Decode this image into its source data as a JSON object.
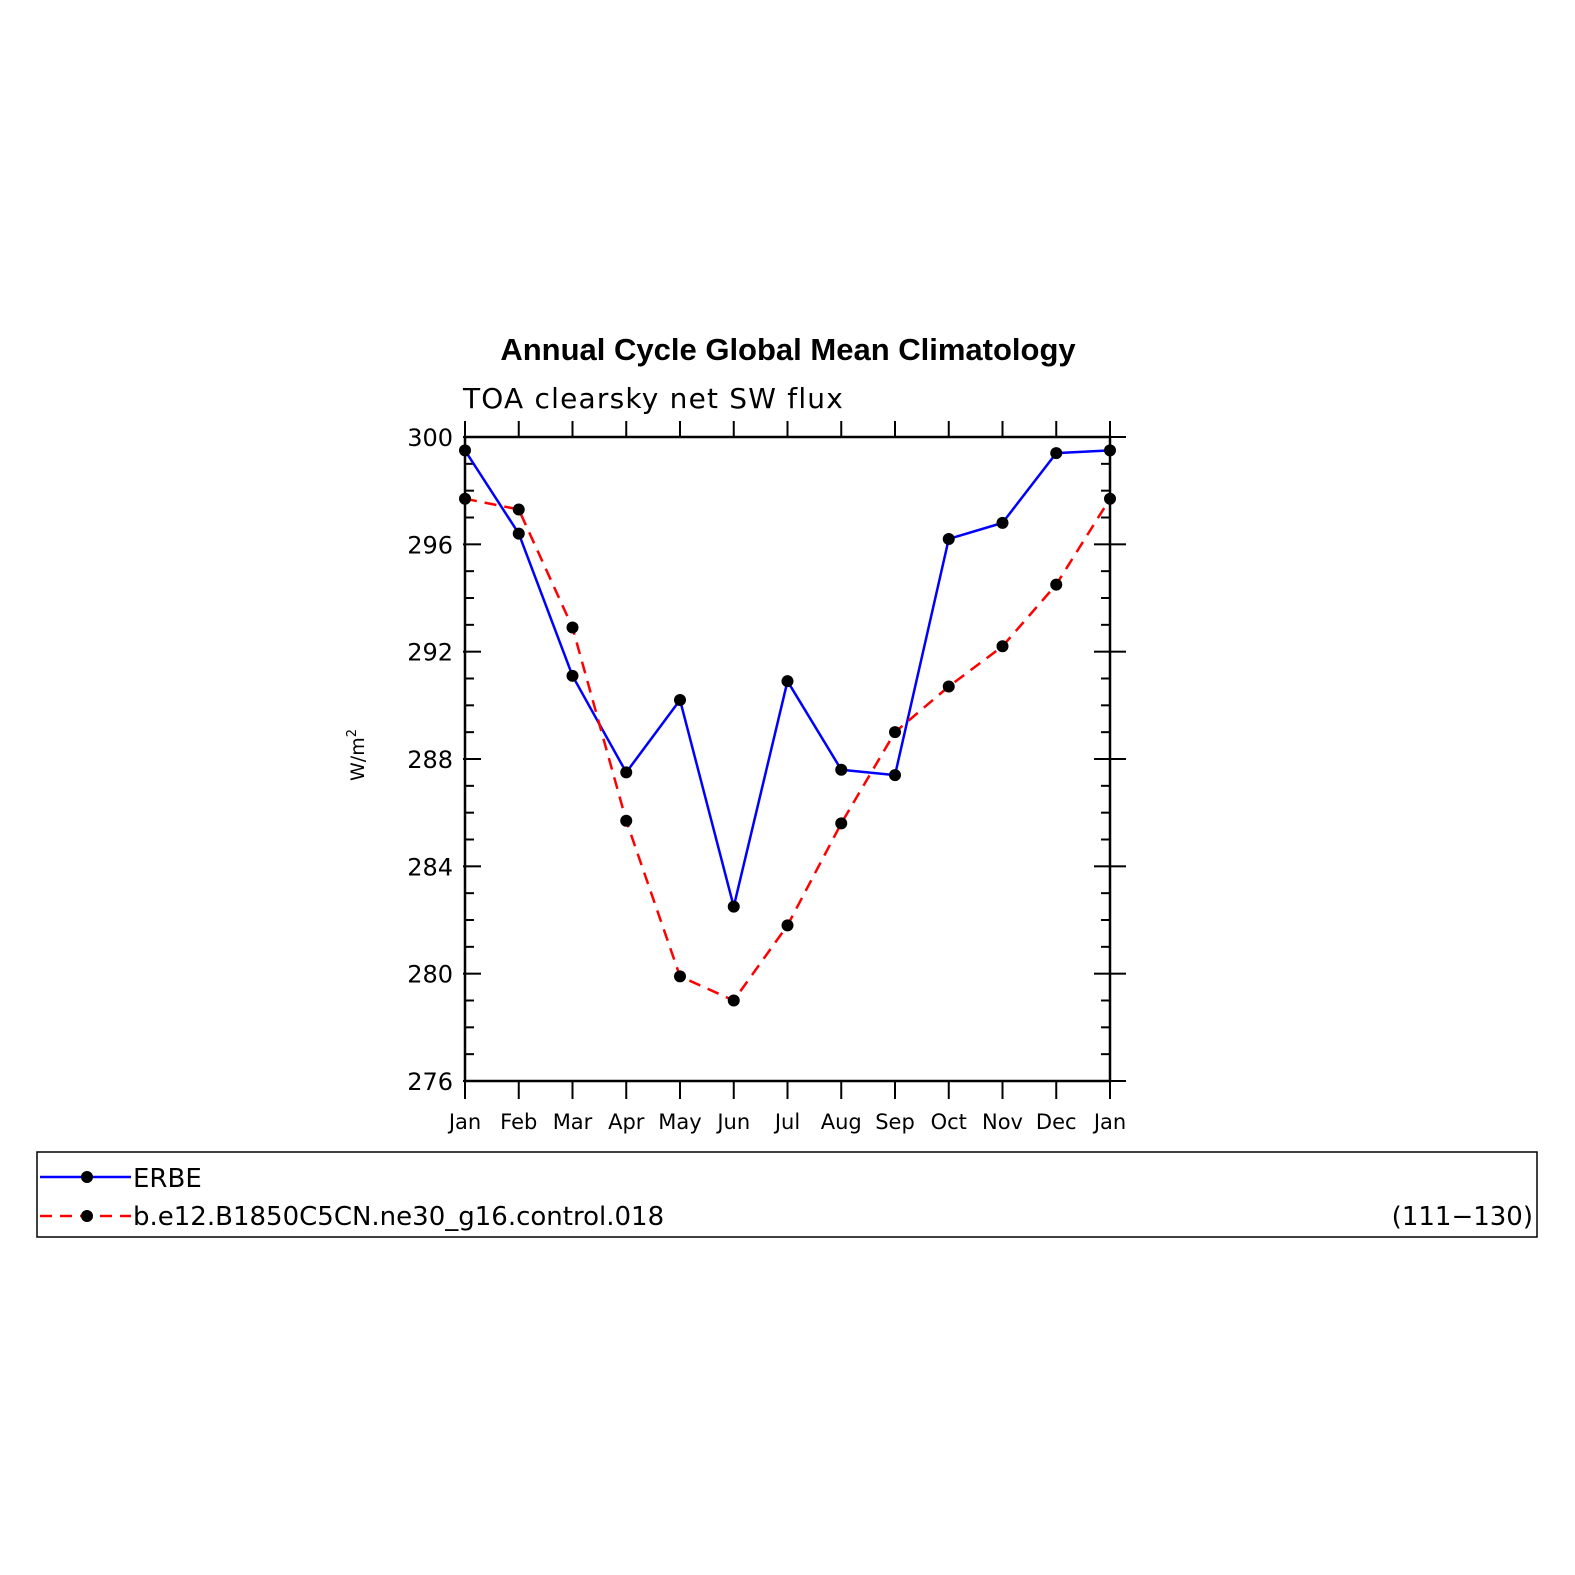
{
  "chart_data": {
    "type": "line",
    "title": "Annual Cycle Global Mean Climatology",
    "subtitle": "TOA clearsky net SW flux",
    "ylabel": "W/m",
    "ylabel_superscript": "2",
    "xlabel": "",
    "categories": [
      "Jan",
      "Feb",
      "Mar",
      "Apr",
      "May",
      "Jun",
      "Jul",
      "Aug",
      "Sep",
      "Oct",
      "Nov",
      "Dec",
      "Jan"
    ],
    "ylim": [
      276,
      300
    ],
    "yticks": [
      276,
      280,
      284,
      288,
      292,
      296,
      300
    ],
    "grid": false,
    "legend_position": "bottom",
    "series": [
      {
        "name": "ERBE",
        "color": "#0000ff",
        "dash": "solid",
        "values": [
          299.5,
          296.4,
          291.1,
          287.5,
          290.2,
          282.5,
          290.9,
          287.6,
          287.4,
          296.2,
          296.8,
          299.4,
          299.5
        ]
      },
      {
        "name": "b.e12.B1850C5CN.ne30_g16.control.018",
        "color": "#ff0000",
        "dash": "dashed",
        "values": [
          297.7,
          297.3,
          292.9,
          285.7,
          279.9,
          279.0,
          281.8,
          285.6,
          289.0,
          290.7,
          292.2,
          294.5,
          297.7
        ],
        "years": "(111−130)"
      }
    ]
  }
}
